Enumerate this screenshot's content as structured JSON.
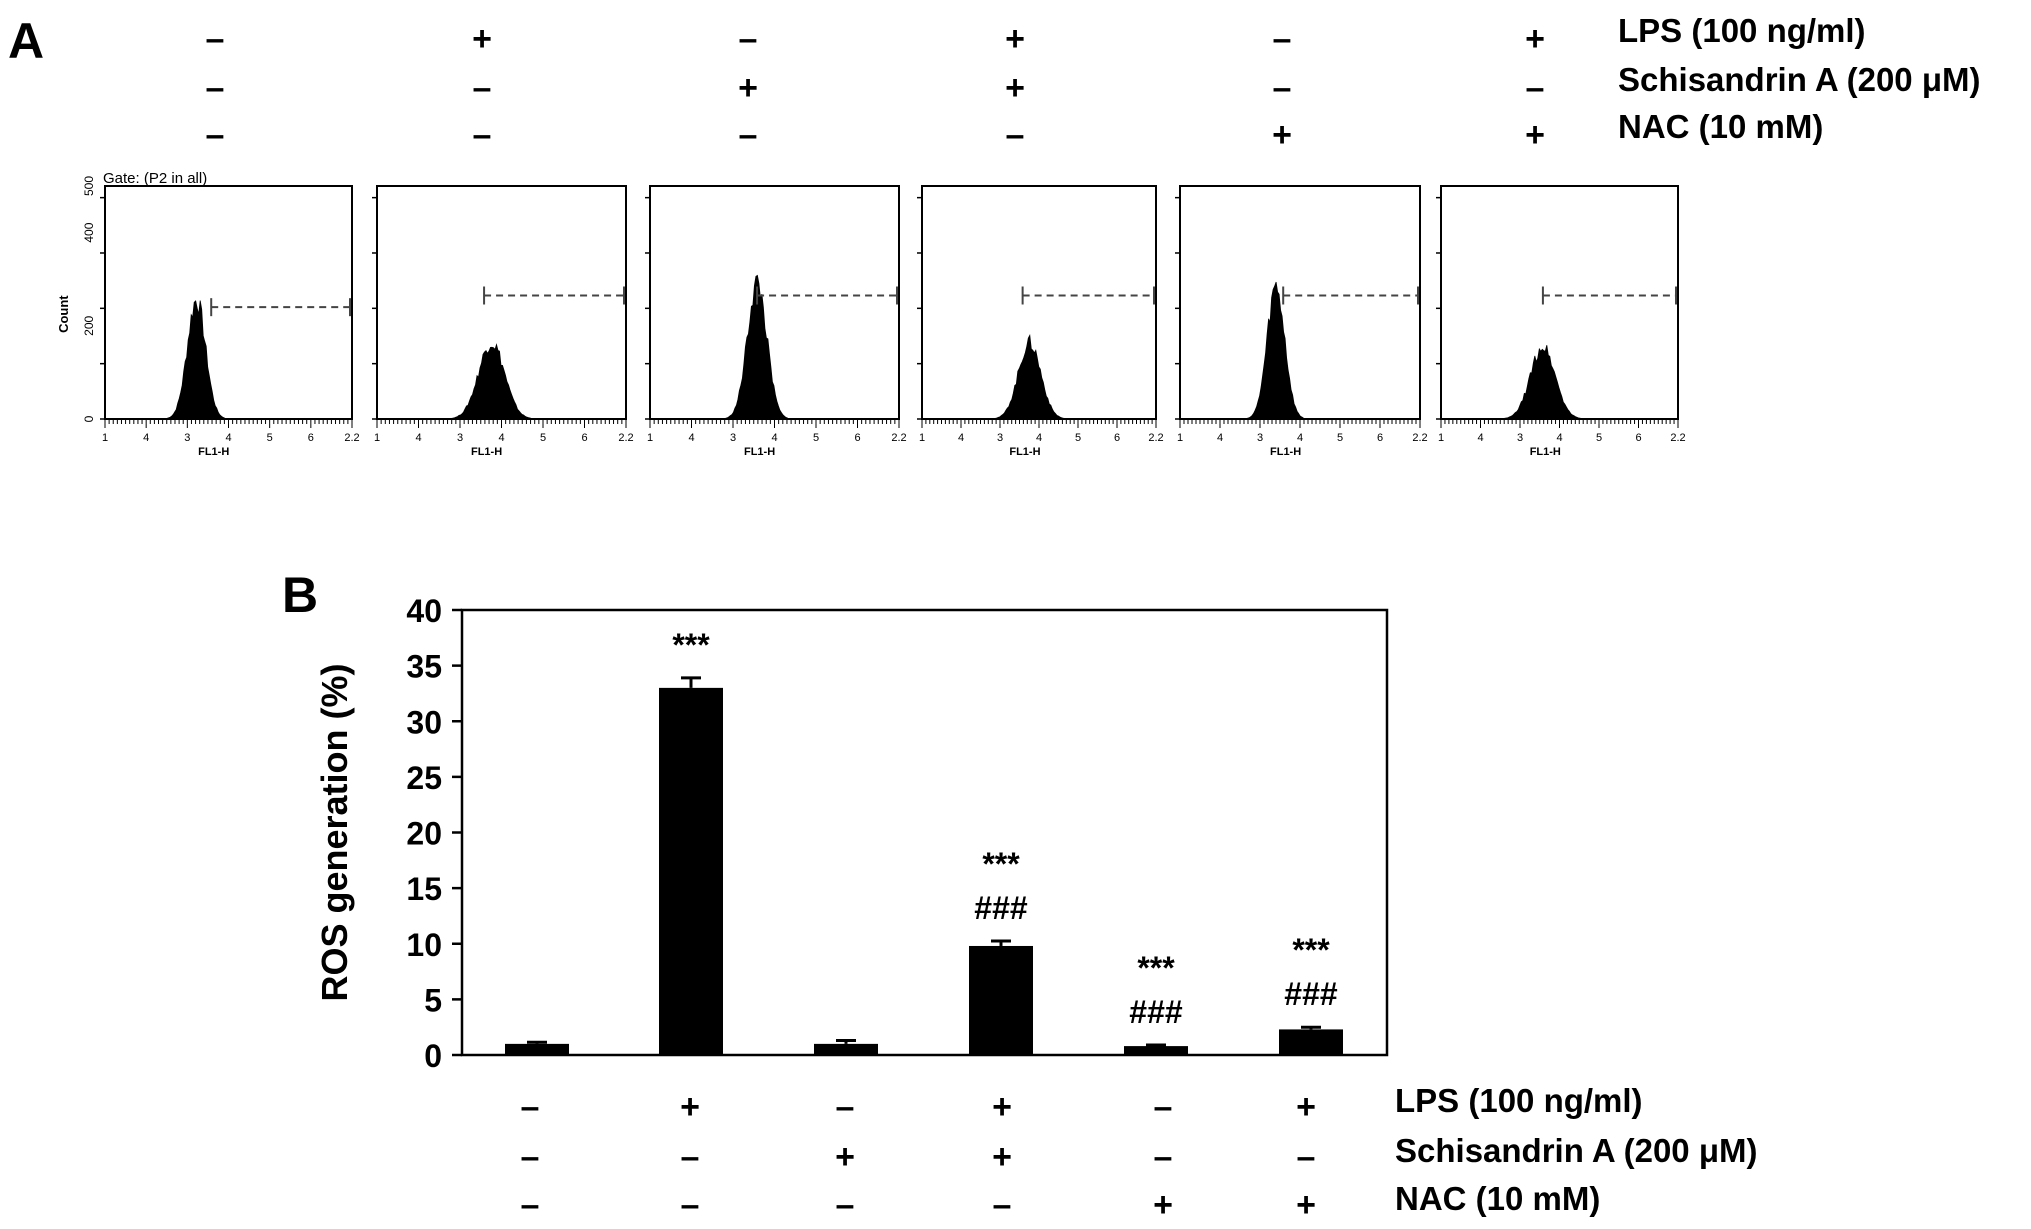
{
  "panel_a": {
    "letter": "A",
    "treatments": [
      {
        "label": "LPS (100 ng/ml)",
        "signs": [
          "–",
          "+",
          "–",
          "+",
          "–",
          "+"
        ]
      },
      {
        "label": "Schisandrin A (200 μM)",
        "signs": [
          "–",
          "–",
          "+",
          "+",
          "–",
          "–"
        ]
      },
      {
        "label": "NAC (10 mM)",
        "signs": [
          "–",
          "–",
          "–",
          "–",
          "+",
          "+"
        ]
      }
    ],
    "histograms": {
      "gate_text": "Gate: (P2 in all)",
      "ylabel": "Count",
      "xlabel": "FL1-H",
      "y_ticks": [
        "0",
        "200",
        "400",
        "500"
      ],
      "x_ticks": [
        "1",
        "4",
        "3",
        "4",
        "5",
        "6",
        "2.2"
      ],
      "samples": [
        {
          "peak_center": 0.37,
          "peak_height": 0.56,
          "peak_width": 0.085
        },
        {
          "peak_center": 0.46,
          "peak_height": 0.36,
          "peak_width": 0.12
        },
        {
          "peak_center": 0.43,
          "peak_height": 0.64,
          "peak_width": 0.09
        },
        {
          "peak_center": 0.46,
          "peak_height": 0.36,
          "peak_width": 0.11
        },
        {
          "peak_center": 0.4,
          "peak_height": 0.62,
          "peak_width": 0.085
        },
        {
          "peak_center": 0.43,
          "peak_height": 0.34,
          "peak_width": 0.12
        }
      ]
    }
  },
  "panel_b": {
    "letter": "B",
    "treatments": [
      {
        "label": "LPS (100 ng/ml)",
        "signs": [
          "–",
          "+",
          "–",
          "+",
          "–",
          "+"
        ]
      },
      {
        "label": "Schisandrin A (200 μM)",
        "signs": [
          "–",
          "–",
          "+",
          "+",
          "–",
          "–"
        ]
      },
      {
        "label": "NAC (10 mM)",
        "signs": [
          "–",
          "–",
          "–",
          "–",
          "+",
          "+"
        ]
      }
    ]
  },
  "chart_data": {
    "type": "bar",
    "title": "",
    "xlabel": "",
    "ylabel": "ROS generation (%)",
    "ylim": [
      0,
      40
    ],
    "y_ticks": [
      "0",
      "5",
      "10",
      "15",
      "20",
      "25",
      "30",
      "35",
      "40"
    ],
    "grid": false,
    "bar_color": "#000000",
    "values": [
      1.0,
      33.0,
      1.0,
      9.8,
      0.8,
      2.3
    ],
    "errors": [
      0.15,
      0.9,
      0.3,
      0.45,
      0.1,
      0.2
    ],
    "annotations": [
      [],
      [
        "***"
      ],
      [],
      [
        "***",
        "###"
      ],
      [
        "***",
        "###"
      ],
      [
        "***",
        "###"
      ]
    ]
  }
}
